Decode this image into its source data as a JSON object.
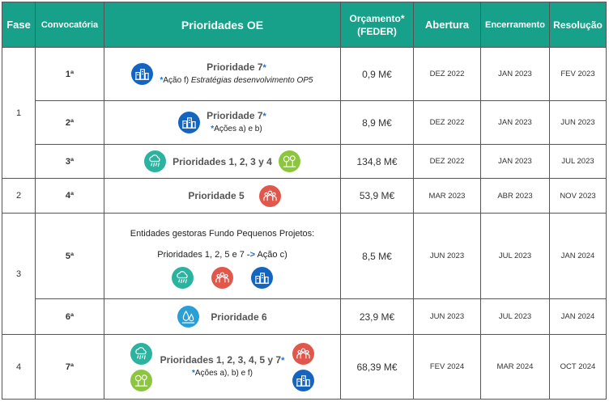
{
  "headers": {
    "fase": "Fase",
    "convocatoria": "Convocatória",
    "prioridades": "Prioridades OE",
    "orcamento_l1": "Orçamento*",
    "orcamento_l2": "(FEDER)",
    "abertura": "Abertura",
    "encerramento": "Encerramento",
    "resolucao": "Resolução"
  },
  "phases": [
    "1",
    "2",
    "3",
    "4"
  ],
  "rows": [
    {
      "convocatoria": "1ª",
      "prio_title": "Prioridade 7",
      "prio_star": "*",
      "prio_sub_star": "*",
      "prio_sub_lead": "Ação f) ",
      "prio_sub_italic": "Estratégias desenvolvimento OP5",
      "orcamento": "0,9 M€",
      "abertura": "DEZ 2022",
      "encerramento": "JAN 2023",
      "resolucao": "FEV 2023"
    },
    {
      "convocatoria": "2ª",
      "prio_title": "Prioridade 7",
      "prio_star": "*",
      "prio_sub_star": "*",
      "prio_sub": "Ações a) e b)",
      "orcamento": "8,9 M€",
      "abertura": "DEZ 2022",
      "encerramento": "JAN 2023",
      "resolucao": "JUN 2023"
    },
    {
      "convocatoria": "3ª",
      "prio_title": "Prioridades 1, 2, 3 y 4",
      "orcamento": "134,8 M€",
      "abertura": "DEZ 2022",
      "encerramento": "JAN 2023",
      "resolucao": "JUL 2023"
    },
    {
      "convocatoria": "4ª",
      "prio_title": "Prioridade 5",
      "orcamento": "53,9 M€",
      "abertura": "MAR 2023",
      "encerramento": "ABR 2023",
      "resolucao": "NOV 2023"
    },
    {
      "convocatoria": "5ª",
      "prio_line1": "Entidades gestoras Fundo Pequenos Projetos:",
      "prio_line2_lead": "Prioridades 1, 2, 5 e 7 ",
      "prio_arrow": "->",
      "prio_line2_tail": " Ação c)",
      "orcamento": "8,5 M€",
      "abertura": "JUN 2023",
      "encerramento": "JUL 2023",
      "resolucao": "JAN 2024"
    },
    {
      "convocatoria": "6ª",
      "prio_title": "Prioridade 6",
      "orcamento": "23,9 M€",
      "abertura": "JUN 2023",
      "encerramento": "JUL 2023",
      "resolucao": "JAN 2024"
    },
    {
      "convocatoria": "7ª",
      "prio_title": "Prioridades 1, 2, 3, 4, 5 y 7",
      "prio_star": "*",
      "prio_sub_star": "*",
      "prio_sub": "Ações a), b) e f)",
      "orcamento": "68,39 M€",
      "abertura": "FEV 2024",
      "encerramento": "MAR 2024",
      "resolucao": "OCT 2024"
    }
  ],
  "icons": {
    "prioridade_7": "city-buildings-icon",
    "prioridade_1": "cloud-rain-icon",
    "prioridade_4": "trees-icon",
    "prioridade_5": "people-group-icon",
    "prioridade_6": "water-drops-icon"
  },
  "colors": {
    "header_bg": "#17a08a",
    "icon_blue": "#1565c0",
    "icon_teal": "#2bb3a0",
    "icon_green": "#8cc63f",
    "icon_red": "#e2574c",
    "icon_sky": "#2a9fd6",
    "star": "#1a73c8"
  }
}
